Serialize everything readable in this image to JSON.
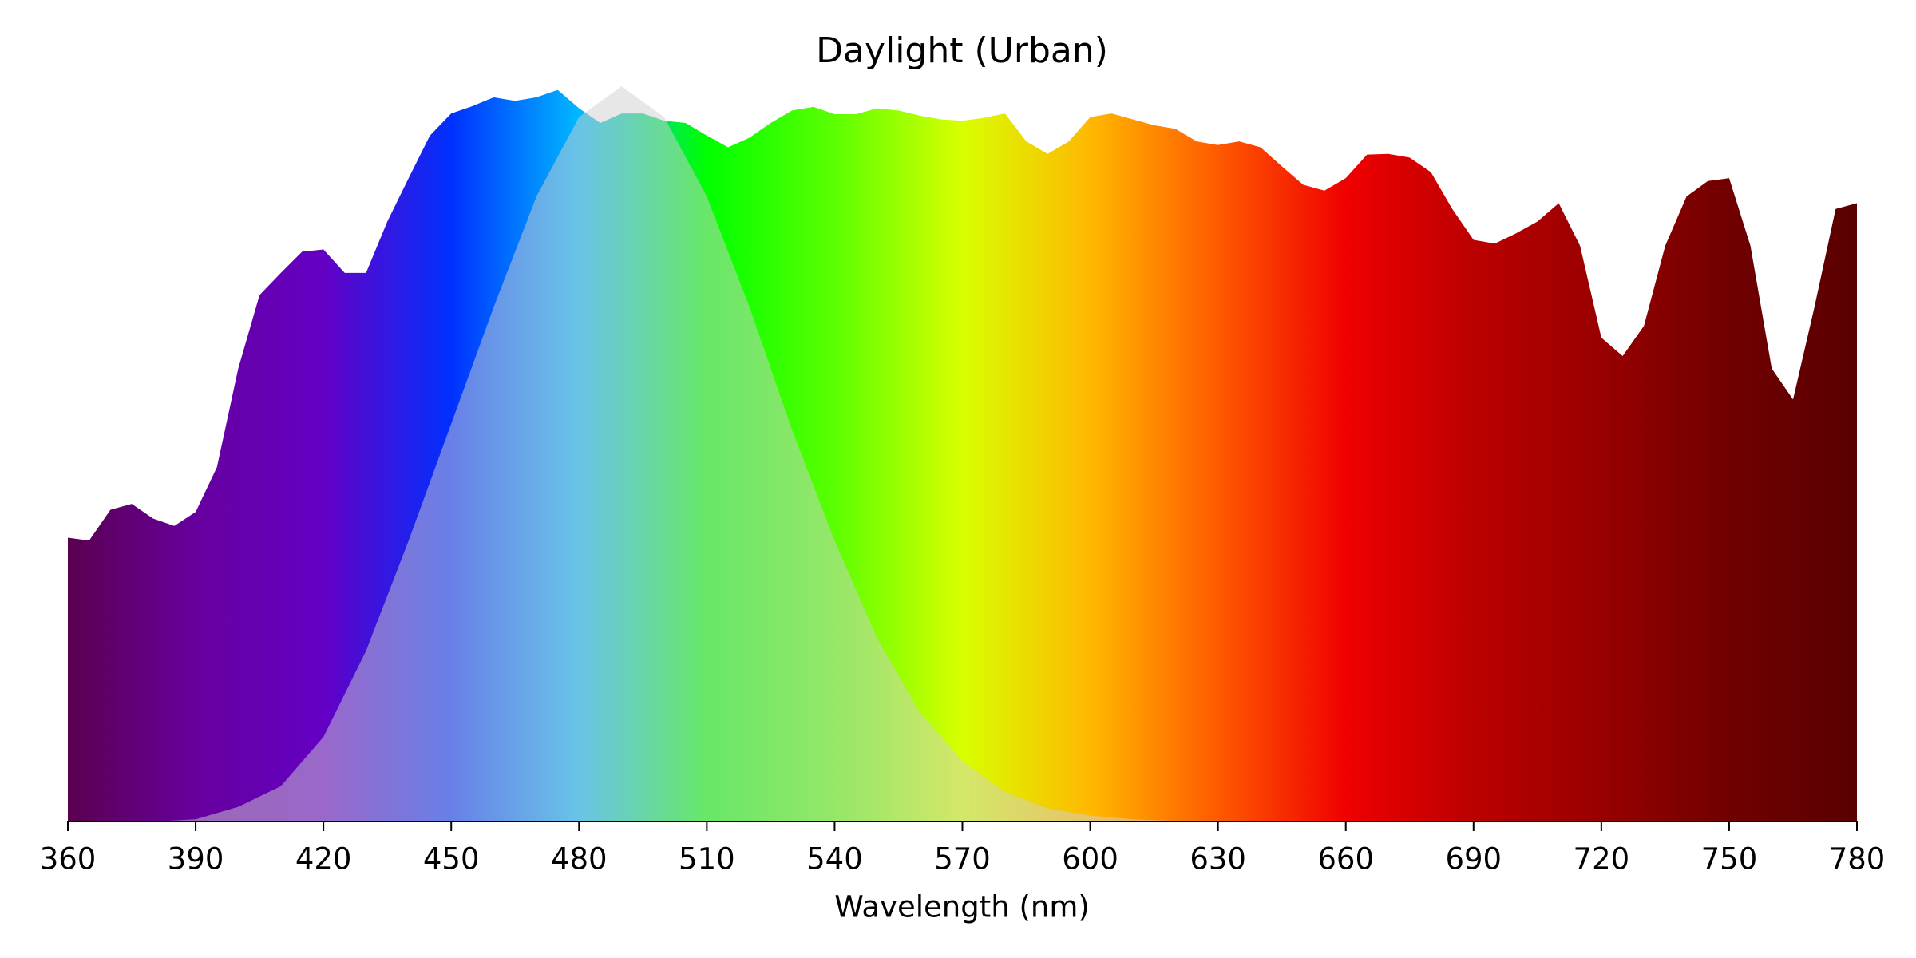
{
  "chart_data": {
    "type": "area",
    "title": "Daylight (Urban)",
    "x_label": "Wavelength (nm)",
    "xlim": [
      360,
      780
    ],
    "xticks": [
      360,
      390,
      420,
      450,
      480,
      510,
      540,
      570,
      600,
      630,
      660,
      690,
      720,
      750,
      780
    ],
    "ylim": [
      0,
      1
    ],
    "gradient": [
      "#5a004f",
      "#66009e",
      "#6400c4",
      "#0030ff",
      "#00b8ff",
      "#00ff00",
      "#5cff00",
      "#d8ff00",
      "#ffb800",
      "#ff5a00",
      "#f00000",
      "#bb0000",
      "#980000",
      "#700000",
      "#5a0000"
    ],
    "series": [
      {
        "fill": "gradient",
        "x": [
          360,
          365,
          370,
          375,
          380,
          385,
          390,
          395,
          400,
          405,
          410,
          415,
          420,
          425,
          430,
          435,
          440,
          445,
          450,
          455,
          460,
          465,
          470,
          475,
          480,
          485,
          490,
          495,
          500,
          505,
          510,
          515,
          520,
          525,
          530,
          535,
          540,
          545,
          550,
          555,
          560,
          565,
          570,
          575,
          580,
          585,
          590,
          595,
          600,
          605,
          610,
          615,
          620,
          625,
          630,
          635,
          640,
          645,
          650,
          655,
          660,
          665,
          670,
          675,
          680,
          685,
          690,
          695,
          700,
          705,
          710,
          715,
          720,
          725,
          730,
          735,
          740,
          745,
          750,
          755,
          760,
          765,
          770,
          775,
          780
        ],
        "values": [
          0.386,
          0.382,
          0.424,
          0.432,
          0.412,
          0.402,
          0.421,
          0.482,
          0.616,
          0.716,
          0.746,
          0.775,
          0.778,
          0.746,
          0.746,
          0.816,
          0.875,
          0.933,
          0.963,
          0.973,
          0.985,
          0.98,
          0.985,
          0.995,
          0.97,
          0.95,
          0.963,
          0.963,
          0.953,
          0.95,
          0.933,
          0.917,
          0.93,
          0.95,
          0.967,
          0.972,
          0.962,
          0.962,
          0.97,
          0.967,
          0.96,
          0.955,
          0.953,
          0.957,
          0.963,
          0.925,
          0.908,
          0.925,
          0.958,
          0.963,
          0.955,
          0.947,
          0.942,
          0.925,
          0.92,
          0.925,
          0.917,
          0.891,
          0.866,
          0.858,
          0.875,
          0.907,
          0.908,
          0.903,
          0.883,
          0.833,
          0.791,
          0.786,
          0.8,
          0.816,
          0.841,
          0.783,
          0.658,
          0.633,
          0.674,
          0.783,
          0.85,
          0.871,
          0.875,
          0.783,
          0.616,
          0.574,
          0.699,
          0.833,
          0.841
        ]
      },
      {
        "fill": "#d0d0d0",
        "opacity": 0.5,
        "x": [
          380,
          390,
          400,
          410,
          420,
          430,
          440,
          450,
          460,
          470,
          480,
          490,
          500,
          510,
          520,
          530,
          540,
          550,
          560,
          570,
          580,
          590,
          600,
          610,
          620
        ],
        "values": [
          0,
          0.003,
          0.02,
          0.048,
          0.115,
          0.232,
          0.382,
          0.541,
          0.7,
          0.85,
          0.958,
          1.0,
          0.958,
          0.85,
          0.7,
          0.533,
          0.382,
          0.249,
          0.149,
          0.082,
          0.04,
          0.018,
          0.008,
          0.003,
          0.001
        ]
      }
    ]
  }
}
